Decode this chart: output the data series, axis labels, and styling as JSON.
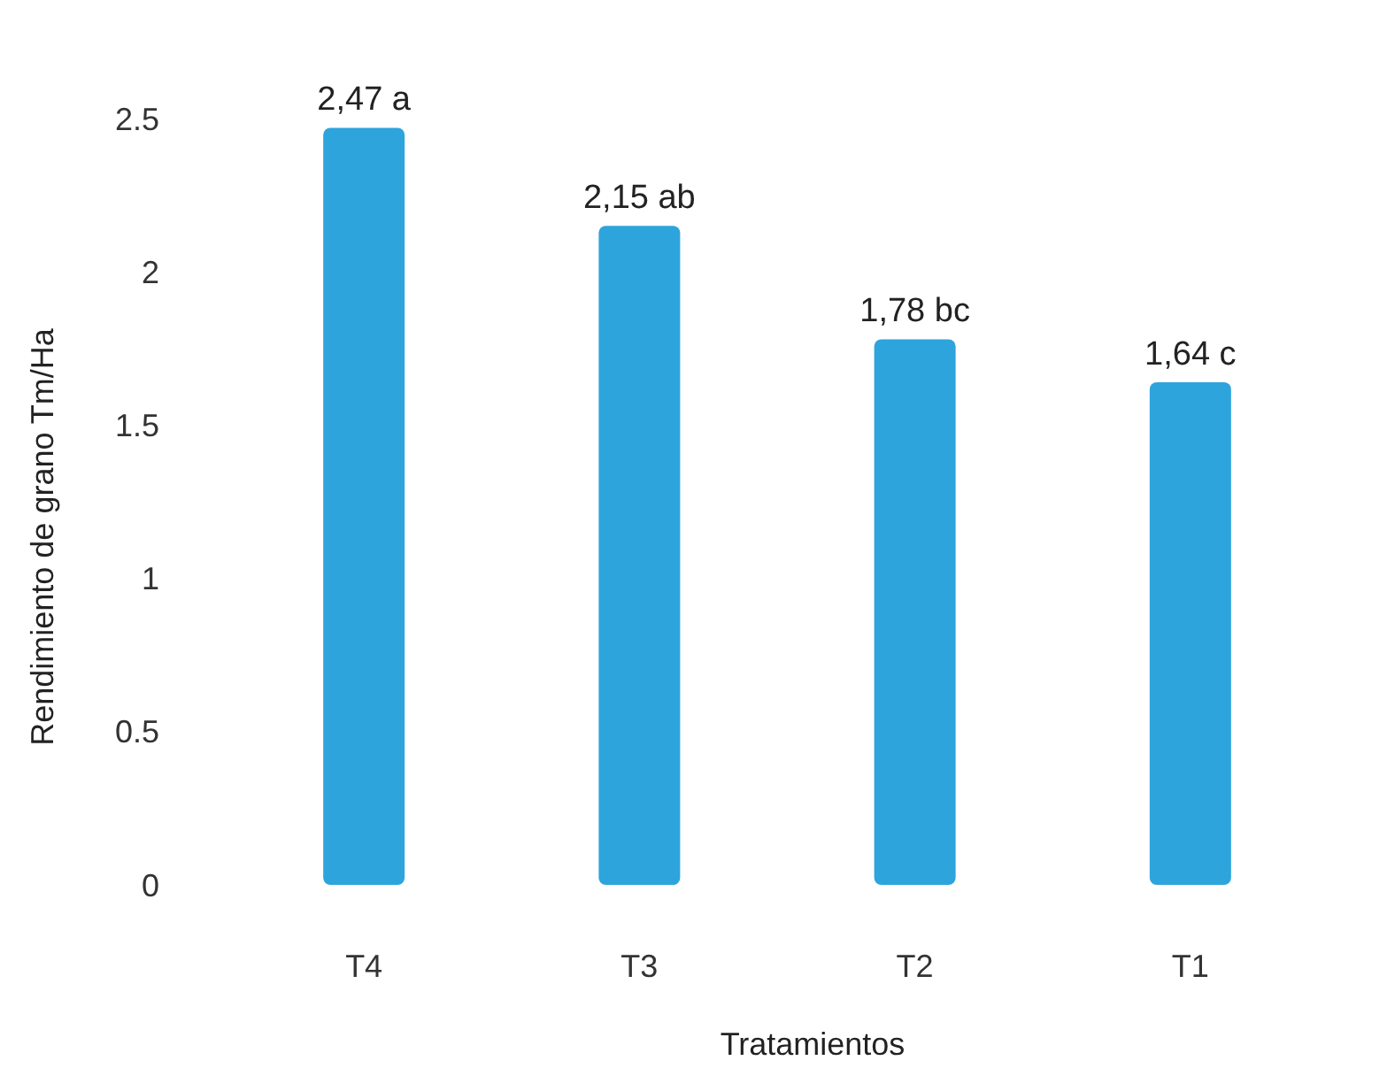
{
  "chart_data": {
    "type": "bar",
    "xlabel": "Tratamientos",
    "ylabel": "Rendimiento de grano Tm/Ha",
    "categories": [
      "T4",
      "T3",
      "T2",
      "T1"
    ],
    "values": [
      2.47,
      2.15,
      1.78,
      1.64
    ],
    "value_labels": [
      "2,47 a",
      "2,15 ab",
      "1,78 bc",
      "1,64 c"
    ],
    "color": "#2ea4dc",
    "ylim": [
      0,
      2.5
    ],
    "yticks": [
      0,
      0.5,
      1,
      1.5,
      2,
      {
        "value": 2.5,
        "label": "2.5"
      }
    ]
  }
}
